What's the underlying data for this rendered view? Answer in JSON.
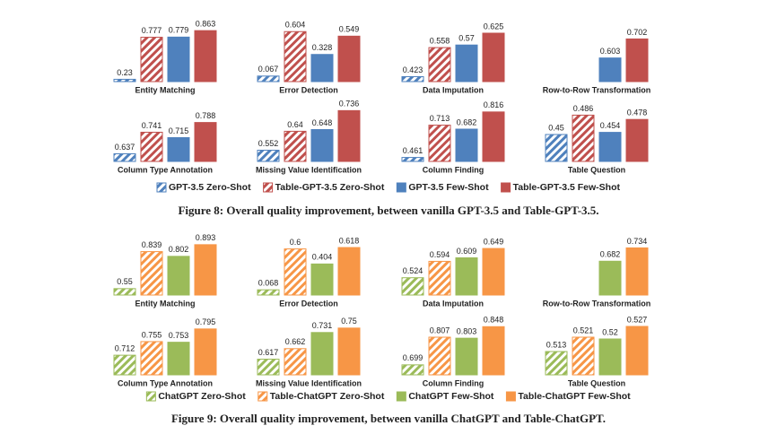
{
  "chart_data": [
    {
      "type": "bar",
      "title": "Entity Matching",
      "ylim": [
        0.2,
        0.9
      ],
      "series": [
        {
          "name": "GPT-3.5 Zero-Shot",
          "color": "#4f81bd",
          "fill": "hatched",
          "values": [
            0.23
          ]
        },
        {
          "name": "Table-GPT-3.5 Zero-Shot",
          "color": "#c0504d",
          "fill": "hatched",
          "values": [
            0.777
          ]
        },
        {
          "name": "GPT-3.5 Few-Shot",
          "color": "#4f81bd",
          "fill": "solid",
          "values": [
            0.779
          ]
        },
        {
          "name": "Table-GPT-3.5 Few-Shot",
          "color": "#c0504d",
          "fill": "solid",
          "values": [
            0.863
          ]
        }
      ]
    },
    {
      "type": "bar",
      "title": "Error Detection",
      "ylim": [
        0,
        0.65
      ],
      "series": [
        {
          "name": "GPT-3.5 Zero-Shot",
          "color": "#4f81bd",
          "fill": "hatched",
          "values": [
            0.067
          ]
        },
        {
          "name": "Table-GPT-3.5 Zero-Shot",
          "color": "#c0504d",
          "fill": "hatched",
          "values": [
            0.604
          ]
        },
        {
          "name": "GPT-3.5 Few-Shot",
          "color": "#4f81bd",
          "fill": "solid",
          "values": [
            0.328
          ]
        },
        {
          "name": "Table-GPT-3.5 Few-Shot",
          "color": "#c0504d",
          "fill": "solid",
          "values": [
            0.549
          ]
        }
      ]
    },
    {
      "type": "bar",
      "title": "Data Imputation",
      "ylim": [
        0.4,
        0.65
      ],
      "series": [
        {
          "name": "GPT-3.5 Zero-Shot",
          "color": "#4f81bd",
          "fill": "hatched",
          "values": [
            0.423
          ]
        },
        {
          "name": "Table-GPT-3.5 Zero-Shot",
          "color": "#c0504d",
          "fill": "hatched",
          "values": [
            0.558
          ]
        },
        {
          "name": "GPT-3.5 Few-Shot",
          "color": "#4f81bd",
          "fill": "solid",
          "values": [
            0.57
          ]
        },
        {
          "name": "Table-GPT-3.5 Few-Shot",
          "color": "#c0504d",
          "fill": "solid",
          "values": [
            0.625
          ]
        }
      ]
    },
    {
      "type": "bar",
      "title": "Row-to-Row Transformation",
      "ylim": [
        0.48,
        0.76
      ],
      "series": [
        {
          "name": "GPT-3.5 Zero-Shot",
          "color": "#4f81bd",
          "fill": "hatched",
          "values": [
            null
          ]
        },
        {
          "name": "Table-GPT-3.5 Zero-Shot",
          "color": "#c0504d",
          "fill": "hatched",
          "values": [
            null
          ]
        },
        {
          "name": "GPT-3.5 Few-Shot",
          "color": "#4f81bd",
          "fill": "solid",
          "values": [
            0.603
          ]
        },
        {
          "name": "Table-GPT-3.5 Few-Shot",
          "color": "#c0504d",
          "fill": "solid",
          "values": [
            0.702
          ]
        }
      ]
    },
    {
      "type": "bar",
      "title": "Column Type Annotation",
      "ylim": [
        0.6,
        0.86
      ],
      "series": [
        {
          "name": "GPT-3.5 Zero-Shot",
          "color": "#4f81bd",
          "fill": "hatched",
          "values": [
            0.637
          ]
        },
        {
          "name": "Table-GPT-3.5 Zero-Shot",
          "color": "#c0504d",
          "fill": "hatched",
          "values": [
            0.741
          ]
        },
        {
          "name": "GPT-3.5 Few-Shot",
          "color": "#4f81bd",
          "fill": "solid",
          "values": [
            0.715
          ]
        },
        {
          "name": "Table-GPT-3.5 Few-Shot",
          "color": "#c0504d",
          "fill": "solid",
          "values": [
            0.788
          ]
        }
      ]
    },
    {
      "type": "bar",
      "title": "Missing Value Identification",
      "ylim": [
        0.5,
        0.75
      ],
      "series": [
        {
          "name": "GPT-3.5 Zero-Shot",
          "color": "#4f81bd",
          "fill": "hatched",
          "values": [
            0.552
          ]
        },
        {
          "name": "Table-GPT-3.5 Zero-Shot",
          "color": "#c0504d",
          "fill": "hatched",
          "values": [
            0.64
          ]
        },
        {
          "name": "GPT-3.5 Few-Shot",
          "color": "#4f81bd",
          "fill": "solid",
          "values": [
            0.648
          ]
        },
        {
          "name": "Table-GPT-3.5 Few-Shot",
          "color": "#c0504d",
          "fill": "solid",
          "values": [
            0.736
          ]
        }
      ]
    },
    {
      "type": "bar",
      "title": "Column Finding",
      "ylim": [
        0.43,
        0.85
      ],
      "series": [
        {
          "name": "GPT-3.5 Zero-Shot",
          "color": "#4f81bd",
          "fill": "hatched",
          "values": [
            0.461
          ]
        },
        {
          "name": "Table-GPT-3.5 Zero-Shot",
          "color": "#c0504d",
          "fill": "hatched",
          "values": [
            0.713
          ]
        },
        {
          "name": "GPT-3.5 Few-Shot",
          "color": "#4f81bd",
          "fill": "solid",
          "values": [
            0.682
          ]
        },
        {
          "name": "Table-GPT-3.5 Few-Shot",
          "color": "#c0504d",
          "fill": "solid",
          "values": [
            0.816
          ]
        }
      ]
    },
    {
      "type": "bar",
      "title": "Table Question",
      "ylim": [
        0.4,
        0.5
      ],
      "series": [
        {
          "name": "GPT-3.5 Zero-Shot",
          "color": "#4f81bd",
          "fill": "hatched",
          "values": [
            0.45
          ]
        },
        {
          "name": "Table-GPT-3.5 Zero-Shot",
          "color": "#c0504d",
          "fill": "hatched",
          "values": [
            0.486
          ]
        },
        {
          "name": "GPT-3.5 Few-Shot",
          "color": "#4f81bd",
          "fill": "solid",
          "values": [
            0.454
          ]
        },
        {
          "name": "Table-GPT-3.5 Few-Shot",
          "color": "#c0504d",
          "fill": "solid",
          "values": [
            0.478
          ]
        }
      ]
    },
    {
      "type": "bar",
      "title": "Entity Matching",
      "ylim": [
        0.5,
        0.92
      ],
      "series": [
        {
          "name": "ChatGPT Zero-Shot",
          "color": "#9bbb59",
          "fill": "hatched",
          "values": [
            0.55
          ]
        },
        {
          "name": "Table-ChatGPT Zero-Shot",
          "color": "#f79646",
          "fill": "hatched",
          "values": [
            0.839
          ]
        },
        {
          "name": "ChatGPT Few-Shot",
          "color": "#9bbb59",
          "fill": "solid",
          "values": [
            0.802
          ]
        },
        {
          "name": "Table-ChatGPT Few-Shot",
          "color": "#f79646",
          "fill": "solid",
          "values": [
            0.893
          ]
        }
      ]
    },
    {
      "type": "bar",
      "title": "Error Detection",
      "ylim": [
        0,
        0.7
      ],
      "series": [
        {
          "name": "ChatGPT Zero-Shot",
          "color": "#9bbb59",
          "fill": "hatched",
          "values": [
            0.068
          ]
        },
        {
          "name": "Table-ChatGPT Zero-Shot",
          "color": "#f79646",
          "fill": "hatched",
          "values": [
            0.6
          ]
        },
        {
          "name": "ChatGPT Few-Shot",
          "color": "#9bbb59",
          "fill": "solid",
          "values": [
            0.404
          ]
        },
        {
          "name": "Table-ChatGPT Few-Shot",
          "color": "#f79646",
          "fill": "solid",
          "values": [
            0.618
          ]
        }
      ]
    },
    {
      "type": "bar",
      "title": "Data Imputation",
      "ylim": [
        0.45,
        0.68
      ],
      "series": [
        {
          "name": "ChatGPT Zero-Shot",
          "color": "#9bbb59",
          "fill": "hatched",
          "values": [
            0.524
          ]
        },
        {
          "name": "Table-ChatGPT Zero-Shot",
          "color": "#f79646",
          "fill": "hatched",
          "values": [
            0.594
          ]
        },
        {
          "name": "ChatGPT Few-Shot",
          "color": "#9bbb59",
          "fill": "solid",
          "values": [
            0.609
          ]
        },
        {
          "name": "Table-ChatGPT Few-Shot",
          "color": "#f79646",
          "fill": "solid",
          "values": [
            0.649
          ]
        }
      ]
    },
    {
      "type": "bar",
      "title": "Row-to-Row Transformation",
      "ylim": [
        0.55,
        0.76
      ],
      "series": [
        {
          "name": "ChatGPT Zero-Shot",
          "color": "#9bbb59",
          "fill": "hatched",
          "values": [
            null
          ]
        },
        {
          "name": "Table-ChatGPT Zero-Shot",
          "color": "#f79646",
          "fill": "hatched",
          "values": [
            null
          ]
        },
        {
          "name": "ChatGPT Few-Shot",
          "color": "#9bbb59",
          "fill": "solid",
          "values": [
            0.682
          ]
        },
        {
          "name": "Table-ChatGPT Few-Shot",
          "color": "#f79646",
          "fill": "solid",
          "values": [
            0.734
          ]
        }
      ]
    },
    {
      "type": "bar",
      "title": "Column Type Annotation",
      "ylim": [
        0.65,
        0.82
      ],
      "series": [
        {
          "name": "ChatGPT Zero-Shot",
          "color": "#9bbb59",
          "fill": "hatched",
          "values": [
            0.712
          ]
        },
        {
          "name": "Table-ChatGPT Zero-Shot",
          "color": "#f79646",
          "fill": "hatched",
          "values": [
            0.755
          ]
        },
        {
          "name": "ChatGPT Few-Shot",
          "color": "#9bbb59",
          "fill": "solid",
          "values": [
            0.753
          ]
        },
        {
          "name": "Table-ChatGPT Few-Shot",
          "color": "#f79646",
          "fill": "solid",
          "values": [
            0.795
          ]
        }
      ]
    },
    {
      "type": "bar",
      "title": "Missing Value Identification",
      "ylim": [
        0.55,
        0.78
      ],
      "series": [
        {
          "name": "ChatGPT Zero-Shot",
          "color": "#9bbb59",
          "fill": "hatched",
          "values": [
            0.617
          ]
        },
        {
          "name": "Table-ChatGPT Zero-Shot",
          "color": "#f79646",
          "fill": "hatched",
          "values": [
            0.662
          ]
        },
        {
          "name": "ChatGPT Few-Shot",
          "color": "#9bbb59",
          "fill": "solid",
          "values": [
            0.731
          ]
        },
        {
          "name": "Table-ChatGPT Few-Shot",
          "color": "#f79646",
          "fill": "solid",
          "values": [
            0.75
          ]
        }
      ]
    },
    {
      "type": "bar",
      "title": "Column Finding",
      "ylim": [
        0.66,
        0.87
      ],
      "series": [
        {
          "name": "ChatGPT Zero-Shot",
          "color": "#9bbb59",
          "fill": "hatched",
          "values": [
            0.699
          ]
        },
        {
          "name": "Table-ChatGPT Zero-Shot",
          "color": "#f79646",
          "fill": "hatched",
          "values": [
            0.807
          ]
        },
        {
          "name": "ChatGPT Few-Shot",
          "color": "#9bbb59",
          "fill": "solid",
          "values": [
            0.803
          ]
        },
        {
          "name": "Table-ChatGPT Few-Shot",
          "color": "#f79646",
          "fill": "solid",
          "values": [
            0.848
          ]
        }
      ]
    },
    {
      "type": "bar",
      "title": "Table Question",
      "ylim": [
        0.5,
        0.53
      ],
      "series": [
        {
          "name": "ChatGPT Zero-Shot",
          "color": "#9bbb59",
          "fill": "hatched",
          "values": [
            0.513
          ]
        },
        {
          "name": "Table-ChatGPT Zero-Shot",
          "color": "#f79646",
          "fill": "hatched",
          "values": [
            0.521
          ]
        },
        {
          "name": "ChatGPT Few-Shot",
          "color": "#9bbb59",
          "fill": "solid",
          "values": [
            0.52
          ]
        },
        {
          "name": "Table-ChatGPT Few-Shot",
          "color": "#f79646",
          "fill": "solid",
          "values": [
            0.527
          ]
        }
      ]
    }
  ],
  "captions": [
    "Figure 8: Overall quality improvement, between vanilla GPT-3.5 and Table-GPT-3.5.",
    "Figure 9: Overall quality improvement, between vanilla ChatGPT and Table-ChatGPT."
  ]
}
